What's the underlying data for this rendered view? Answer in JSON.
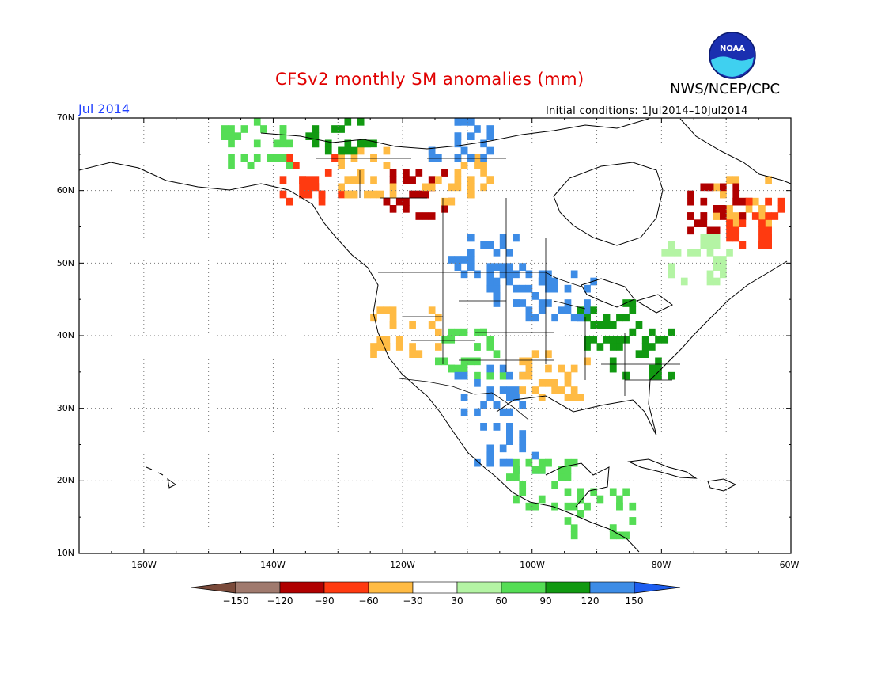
{
  "header": {
    "title": "CFSv2 monthly SM anomalies (mm)",
    "agency": "NWS/NCEP/CPC",
    "month": "Jul 2014",
    "initial_conditions": "Initial conditions: 1Jul2014–10Jul2014",
    "logo_text": "NOAA"
  },
  "axes": {
    "lat_labels": [
      "70N",
      "60N",
      "50N",
      "40N",
      "30N",
      "20N",
      "10N"
    ],
    "lon_labels": [
      "160W",
      "140W",
      "120W",
      "100W",
      "80W",
      "60W"
    ]
  },
  "colorbar": {
    "labels": [
      "−150",
      "−120",
      "−90",
      "−60",
      "−30",
      "30",
      "60",
      "90",
      "120",
      "150"
    ],
    "colors": [
      "#7a4a3a",
      "#a07a6e",
      "#b00000",
      "#ff3a10",
      "#ffbb44",
      "#ffffff",
      "#b4f4a4",
      "#55dd55",
      "#119911",
      "#3d8ce6",
      "#1e5ef0"
    ]
  },
  "map": {
    "extent": {
      "lon": [
        -170,
        -60
      ],
      "lat": [
        10,
        70
      ]
    },
    "gridlines": "dotted",
    "anomaly_patches": [
      {
        "lon": -135,
        "lat": 61,
        "cat": "dry2"
      },
      {
        "lon": -118,
        "lat": 59,
        "cat": "dry3"
      },
      {
        "lon": -125,
        "lat": 62,
        "cat": "dry1"
      },
      {
        "lon": -112,
        "lat": 61,
        "cat": "dry1"
      },
      {
        "lon": -68,
        "lat": 58,
        "cat": "dry1"
      },
      {
        "lon": -72,
        "lat": 57,
        "cat": "dry3"
      },
      {
        "lon": -65,
        "lat": 55,
        "cat": "dry2"
      },
      {
        "lon": -102,
        "lat": 46,
        "cat": "wet4"
      },
      {
        "lon": -96,
        "lat": 45,
        "cat": "wet4"
      },
      {
        "lon": -108,
        "lat": 50,
        "cat": "wet4"
      },
      {
        "lon": -88,
        "lat": 41,
        "cat": "wet3"
      },
      {
        "lon": -84,
        "lat": 37,
        "cat": "wet3"
      },
      {
        "lon": -110,
        "lat": 37,
        "cat": "wet2"
      },
      {
        "lon": -107,
        "lat": 32,
        "cat": "wet4"
      },
      {
        "lon": -104,
        "lat": 24,
        "cat": "wet4"
      },
      {
        "lon": -99,
        "lat": 19,
        "cat": "wet2"
      },
      {
        "lon": -90,
        "lat": 15,
        "cat": "wet2"
      },
      {
        "lon": -143,
        "lat": 66,
        "cat": "wet2"
      },
      {
        "lon": -130,
        "lat": 68,
        "cat": "wet3"
      },
      {
        "lon": -112,
        "lat": 67,
        "cat": "wet4"
      },
      {
        "lon": -75,
        "lat": 50,
        "cat": "wet1"
      },
      {
        "lon": -120,
        "lat": 40,
        "cat": "dry1"
      },
      {
        "lon": -97,
        "lat": 34,
        "cat": "dry1"
      }
    ]
  }
}
